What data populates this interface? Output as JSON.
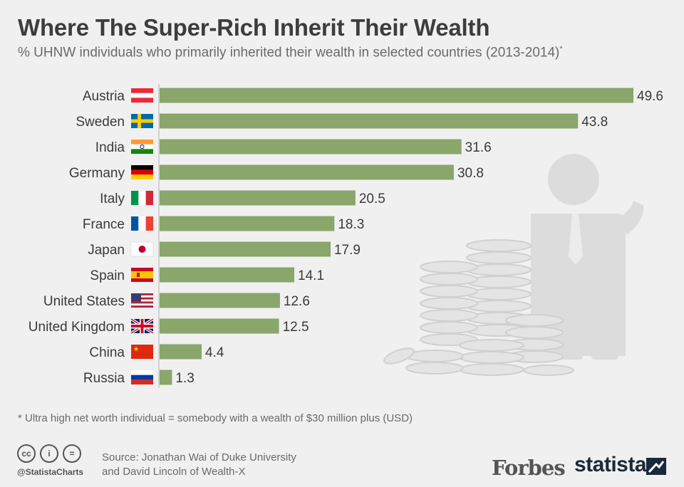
{
  "header": {
    "title": "Where The Super-Rich Inherit Their Wealth",
    "subtitle": "% UHNW individuals who primarily inherited their wealth in selected countries (2013-2014)",
    "subtitle_mark": "*"
  },
  "chart_data": {
    "type": "bar",
    "orientation": "horizontal",
    "categories": [
      "Austria",
      "Sweden",
      "India",
      "Germany",
      "Italy",
      "France",
      "Japan",
      "Spain",
      "United States",
      "United Kingdom",
      "China",
      "Russia"
    ],
    "values": [
      49.6,
      43.8,
      31.6,
      30.8,
      20.5,
      18.3,
      17.9,
      14.1,
      12.6,
      12.5,
      4.4,
      1.3
    ],
    "flag_icons": [
      "austria-flag-icon",
      "sweden-flag-icon",
      "india-flag-icon",
      "germany-flag-icon",
      "italy-flag-icon",
      "france-flag-icon",
      "japan-flag-icon",
      "spain-flag-icon",
      "united-states-flag-icon",
      "united-kingdom-flag-icon",
      "china-flag-icon",
      "russia-flag-icon"
    ],
    "xlim": [
      0,
      50
    ],
    "bar_color": "#8aa66a",
    "grid": false,
    "legend": "none"
  },
  "footer": {
    "footnote": "* Ultra high net worth individual = somebody with a wealth of $30 million plus (USD)",
    "cc_icons": [
      "creative-commons-icon",
      "attribution-icon",
      "no-derivatives-icon"
    ],
    "cc_glyphs": [
      "cc",
      "i",
      "="
    ],
    "handle": "@StatistaCharts",
    "source_line1": "Source: Jonathan Wai of Duke University",
    "source_line2": "and David Lincoln of Wealth-X",
    "brand1": "Forbes",
    "brand2": "statista"
  }
}
